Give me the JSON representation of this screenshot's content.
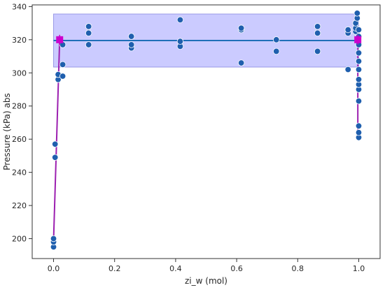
{
  "chart_data": {
    "type": "scatter",
    "xlabel": "zi_w (mol)",
    "ylabel": "Pressure (kPa) abs",
    "xlim": [
      -0.07,
      1.07
    ],
    "ylim": [
      188,
      341
    ],
    "xticks": [
      0.0,
      0.2,
      0.4,
      0.6,
      0.8,
      1.0
    ],
    "xtick_labels": [
      "0.0",
      "0.2",
      "0.4",
      "0.6",
      "0.8",
      "1.0"
    ],
    "yticks": [
      200,
      220,
      240,
      260,
      280,
      300,
      320,
      340
    ],
    "ytick_labels": [
      "200",
      "220",
      "240",
      "260",
      "280",
      "300",
      "320",
      "340"
    ],
    "grid": false,
    "colors": {
      "points": "#1f5fae",
      "band_fill": "#c8c8ff",
      "band_stroke": "#9a9ae6",
      "mean_line": "#1f6fb8",
      "fit_line": "#9c1fb0",
      "markers": "#cc00cc"
    },
    "band": {
      "y_low": 303.5,
      "y_high": 335.5,
      "x_start": 0.0,
      "x_end": 1.0
    },
    "mean_line": {
      "y": 319.5,
      "x_start": 0.0,
      "x_end": 1.0
    },
    "left_branch": [
      {
        "x": 0.0,
        "y": 199
      },
      {
        "x": 0.02,
        "y": 320
      }
    ],
    "right_branch": [
      {
        "x": 0.997,
        "y": 320
      },
      {
        "x": 0.997,
        "y": 261
      }
    ],
    "square_markers": [
      {
        "x": 0.02,
        "y": 320
      },
      {
        "x": 0.997,
        "y": 320
      }
    ],
    "points": [
      {
        "x": 0.0,
        "y": 195
      },
      {
        "x": 0.0,
        "y": 198
      },
      {
        "x": 0.0,
        "y": 200
      },
      {
        "x": 0.005,
        "y": 249
      },
      {
        "x": 0.005,
        "y": 257
      },
      {
        "x": 0.015,
        "y": 296
      },
      {
        "x": 0.015,
        "y": 299
      },
      {
        "x": 0.03,
        "y": 298
      },
      {
        "x": 0.03,
        "y": 305
      },
      {
        "x": 0.03,
        "y": 317
      },
      {
        "x": 0.115,
        "y": 317
      },
      {
        "x": 0.115,
        "y": 324
      },
      {
        "x": 0.115,
        "y": 328
      },
      {
        "x": 0.255,
        "y": 315
      },
      {
        "x": 0.255,
        "y": 317
      },
      {
        "x": 0.255,
        "y": 322
      },
      {
        "x": 0.415,
        "y": 316
      },
      {
        "x": 0.415,
        "y": 319
      },
      {
        "x": 0.415,
        "y": 332
      },
      {
        "x": 0.615,
        "y": 306
      },
      {
        "x": 0.615,
        "y": 326
      },
      {
        "x": 0.615,
        "y": 327
      },
      {
        "x": 0.73,
        "y": 313
      },
      {
        "x": 0.73,
        "y": 320
      },
      {
        "x": 0.865,
        "y": 313
      },
      {
        "x": 0.865,
        "y": 324
      },
      {
        "x": 0.865,
        "y": 328
      },
      {
        "x": 0.965,
        "y": 302
      },
      {
        "x": 0.965,
        "y": 324
      },
      {
        "x": 0.965,
        "y": 326
      },
      {
        "x": 0.99,
        "y": 325
      },
      {
        "x": 0.99,
        "y": 327
      },
      {
        "x": 0.99,
        "y": 330
      },
      {
        "x": 0.995,
        "y": 333
      },
      {
        "x": 0.995,
        "y": 336
      },
      {
        "x": 1.0,
        "y": 261
      },
      {
        "x": 1.0,
        "y": 264
      },
      {
        "x": 1.0,
        "y": 268
      },
      {
        "x": 1.0,
        "y": 283
      },
      {
        "x": 1.0,
        "y": 290
      },
      {
        "x": 1.0,
        "y": 293
      },
      {
        "x": 1.0,
        "y": 296
      },
      {
        "x": 1.0,
        "y": 302
      },
      {
        "x": 1.0,
        "y": 307
      },
      {
        "x": 1.0,
        "y": 312
      },
      {
        "x": 1.0,
        "y": 317
      },
      {
        "x": 1.0,
        "y": 322
      },
      {
        "x": 1.0,
        "y": 326
      }
    ]
  }
}
